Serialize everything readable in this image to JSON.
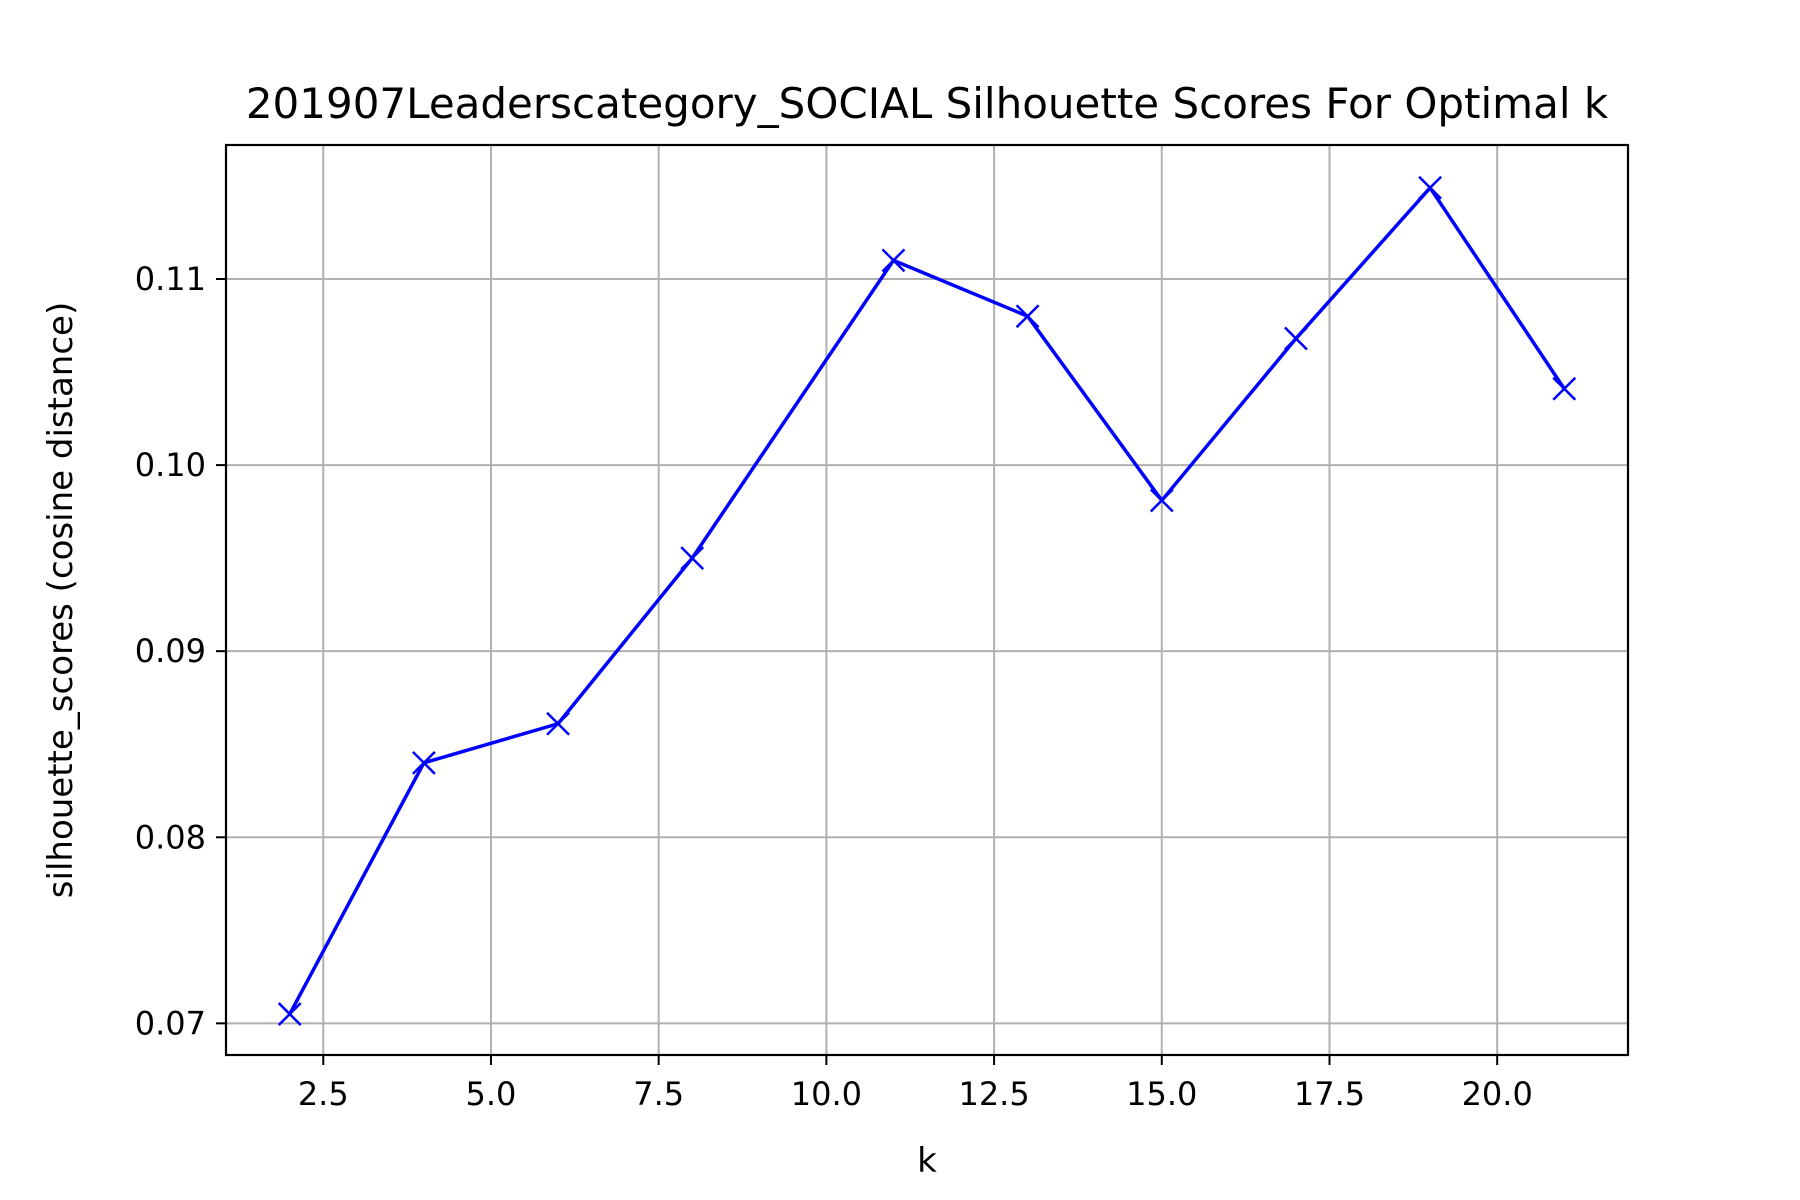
{
  "chart_data": {
    "type": "line",
    "title": "201907Leaderscategory_SOCIAL Silhouette Scores For Optimal k",
    "xlabel": "k",
    "ylabel": "silhouette_scores (cosine distance)",
    "xlim": [
      1.05,
      21.95
    ],
    "ylim": [
      0.0683,
      0.1172
    ],
    "xticks": [
      2.5,
      5.0,
      7.5,
      10.0,
      12.5,
      15.0,
      17.5,
      20.0
    ],
    "xtick_labels": [
      "2.5",
      "5.0",
      "7.5",
      "10.0",
      "12.5",
      "15.0",
      "17.5",
      "20.0"
    ],
    "yticks": [
      0.07,
      0.08,
      0.09,
      0.1,
      0.11
    ],
    "ytick_labels": [
      "0.07",
      "0.08",
      "0.09",
      "0.10",
      "0.11"
    ],
    "grid": true,
    "marker": "x",
    "color": "#0000ff",
    "series": [
      {
        "x": [
          2,
          4,
          6,
          8,
          11,
          13,
          15,
          17,
          19,
          21
        ],
        "values": [
          0.0705,
          0.084,
          0.0861,
          0.095,
          0.111,
          0.108,
          0.0981,
          0.1068,
          0.1149,
          0.1041
        ]
      }
    ]
  }
}
